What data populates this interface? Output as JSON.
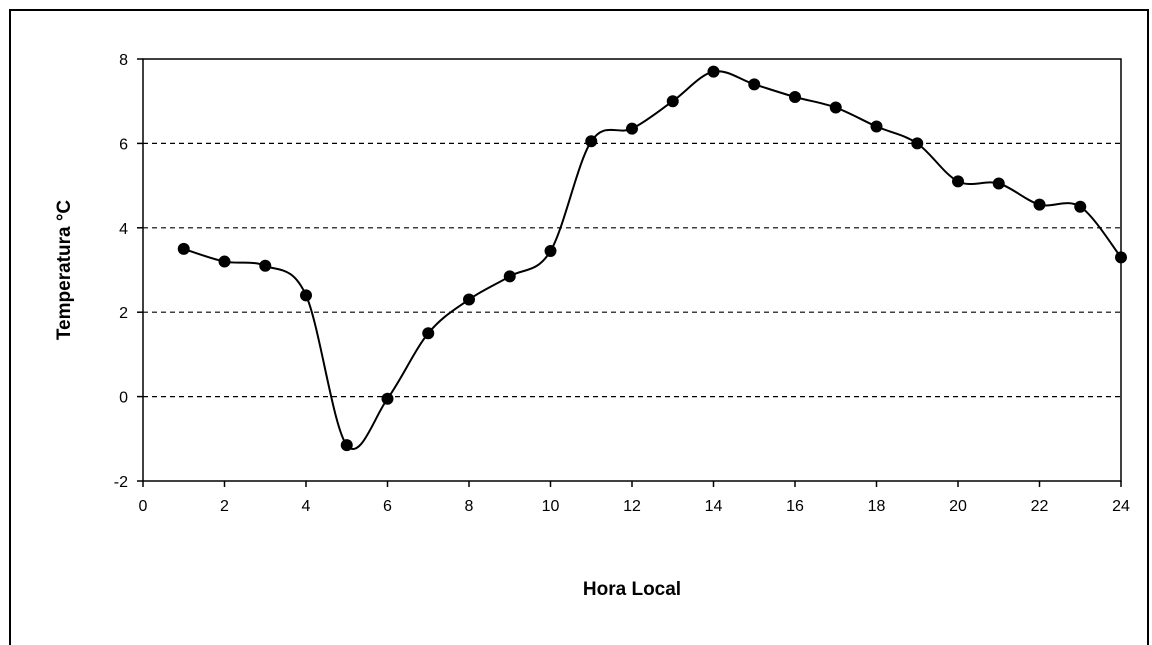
{
  "chart_data": {
    "type": "line",
    "title": "",
    "xlabel": "Hora Local",
    "ylabel": "Temperatura °C",
    "xlim": [
      0,
      24
    ],
    "ylim": [
      -2,
      8
    ],
    "x_ticks": [
      0,
      2,
      4,
      6,
      8,
      10,
      12,
      14,
      16,
      18,
      20,
      22,
      24
    ],
    "y_ticks": [
      -2,
      0,
      2,
      4,
      6,
      8
    ],
    "grid": "horizontal dashed at 0, 2, 4, 6",
    "series": [
      {
        "x": [
          1,
          2,
          3,
          4,
          5,
          6,
          7,
          8,
          9,
          10,
          11,
          12,
          13,
          14,
          15,
          16,
          17,
          18,
          19,
          20,
          21,
          22,
          23,
          24
        ],
        "y": [
          3.5,
          3.2,
          3.1,
          2.4,
          -1.15,
          -0.05,
          1.5,
          2.3,
          2.85,
          3.45,
          6.05,
          6.35,
          7.0,
          7.7,
          7.4,
          7.1,
          6.85,
          6.4,
          6.0,
          5.1,
          5.05,
          4.55,
          4.5,
          3.3
        ]
      }
    ],
    "colors": {
      "line": "#000000",
      "marker": "#000000",
      "grid": "#000000"
    }
  }
}
